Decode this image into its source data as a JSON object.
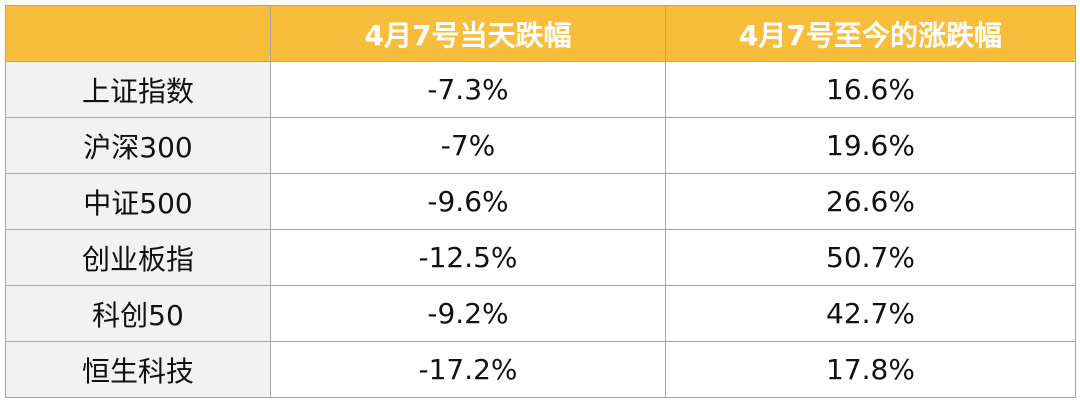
{
  "table": {
    "header": [
      "4月7号当天跌幅",
      "4月7号至今的涨跌幅"
    ],
    "rows": [
      [
        "上证指数",
        "-7.3%",
        "16.6%"
      ],
      [
        "沪深300",
        "-7%",
        "19.6%"
      ],
      [
        "中证500",
        "-9.6%",
        "26.6%"
      ],
      [
        "创业板指",
        "-12.5%",
        "50.7%"
      ],
      [
        "科创50",
        "-9.2%",
        "42.7%"
      ],
      [
        "恒生科技",
        "-17.2%",
        "17.8%"
      ]
    ]
  }
}
